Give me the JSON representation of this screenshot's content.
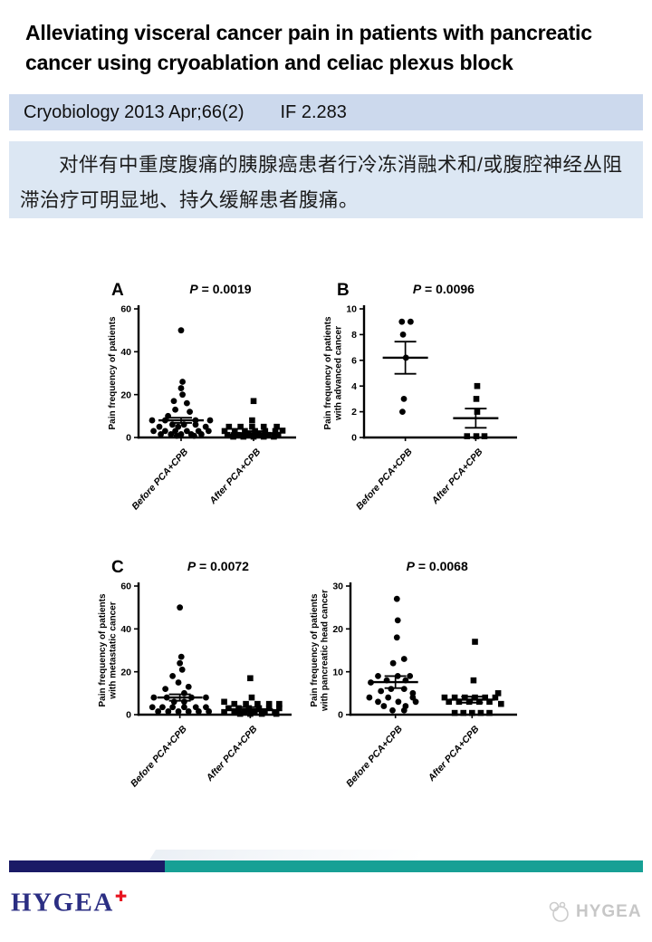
{
  "header": {
    "title": "Alleviating visceral cancer pain in patients with pancreatic cancer using cryoablation and celiac plexus block",
    "journal": "Cryobiology 2013 Apr;66(2)",
    "impact_factor": "IF 2.283"
  },
  "summary_cn": "对伴有中重度腹痛的胰腺癌患者行冷冻消融术和/或腹腔神经丛阻滞治疗可明显地、持久缓解患者腹痛。",
  "footer": {
    "brand": "HYGEA",
    "brand_cross": "✚",
    "watermark_label": "HYGEA"
  },
  "colors": {
    "banner_bg": "#ccd9ed",
    "summary_bg": "#dce7f3",
    "bar_navy": "#1a1a66",
    "bar_teal": "#17a095",
    "brand_navy": "#2b2e83",
    "cross_red": "#e8131f",
    "watermark_gray": "#c7c7c7",
    "plot_ink": "#000000"
  },
  "chart_data": [
    {
      "type": "scatter",
      "panel": "A",
      "p_value": "0.0019",
      "ylabel_lines": [
        "Pain frequency of patients"
      ],
      "ylim": [
        0,
        60
      ],
      "yticks": [
        0,
        20,
        40,
        60
      ],
      "categories": [
        "Before PCA+CPB",
        "After PCA+CPB"
      ],
      "legend": "none",
      "grid": false,
      "series": [
        {
          "name": "Before PCA+CPB",
          "marker": "circle",
          "mean": 8,
          "sem": 1.2,
          "points": [
            [
              0,
              50
            ],
            [
              0.05,
              26
            ],
            [
              0,
              23
            ],
            [
              0.05,
              20
            ],
            [
              -0.25,
              17
            ],
            [
              0.2,
              16
            ],
            [
              -0.2,
              13
            ],
            [
              0.3,
              12
            ],
            [
              -0.45,
              10
            ],
            [
              -1,
              8
            ],
            [
              -0.55,
              8
            ],
            [
              0.5,
              8
            ],
            [
              1,
              8
            ],
            [
              -0.3,
              6
            ],
            [
              0.1,
              6
            ],
            [
              0.5,
              6
            ],
            [
              -0.75,
              5
            ],
            [
              -0.1,
              5
            ],
            [
              0.85,
              5
            ],
            [
              -0.95,
              3
            ],
            [
              -0.55,
              3
            ],
            [
              -0.2,
              3
            ],
            [
              0.2,
              3
            ],
            [
              0.6,
              3
            ],
            [
              0.95,
              3
            ],
            [
              -0.7,
              1.5
            ],
            [
              -0.35,
              1.5
            ],
            [
              0,
              1.5
            ],
            [
              0.35,
              1.5
            ],
            [
              0.7,
              1.5
            ],
            [
              -0.15,
              0.8
            ],
            [
              0.45,
              0.8
            ]
          ]
        },
        {
          "name": "After PCA+CPB",
          "marker": "square",
          "mean": 2,
          "sem": 0.9,
          "points": [
            [
              0,
              17
            ],
            [
              -0.05,
              8
            ],
            [
              -0.85,
              5
            ],
            [
              -0.45,
              5
            ],
            [
              -0.05,
              5
            ],
            [
              0.35,
              5
            ],
            [
              0.8,
              5
            ],
            [
              -1,
              3
            ],
            [
              -0.65,
              3
            ],
            [
              -0.3,
              3
            ],
            [
              0.05,
              3
            ],
            [
              0.4,
              3
            ],
            [
              0.75,
              3
            ],
            [
              1,
              3.2
            ],
            [
              -0.9,
              1.2
            ],
            [
              -0.55,
              1.2
            ],
            [
              -0.2,
              1.2
            ],
            [
              0.15,
              1.2
            ],
            [
              0.5,
              1.2
            ],
            [
              0.85,
              1.2
            ],
            [
              -0.7,
              0.4
            ],
            [
              -0.35,
              0.4
            ],
            [
              0,
              0.4
            ],
            [
              0.35,
              0.4
            ],
            [
              0.7,
              0.4
            ]
          ]
        }
      ]
    },
    {
      "type": "scatter",
      "panel": "B",
      "p_value": "0.0096",
      "ylabel_lines": [
        "Pain frequency of patients",
        "with advanced cancer"
      ],
      "ylim": [
        0,
        10
      ],
      "yticks": [
        0,
        2,
        4,
        6,
        8,
        10
      ],
      "categories": [
        "Before PCA+CPB",
        "After PCA+CPB"
      ],
      "legend": "none",
      "grid": false,
      "series": [
        {
          "name": "Before PCA+CPB",
          "marker": "circle",
          "mean": 6.2,
          "sem": 1.25,
          "points": [
            [
              -0.12,
              9
            ],
            [
              0.18,
              9
            ],
            [
              -0.08,
              8
            ],
            [
              0.02,
              6.2
            ],
            [
              -0.05,
              3
            ],
            [
              -0.1,
              2
            ]
          ]
        },
        {
          "name": "After PCA+CPB",
          "marker": "square",
          "mean": 1.5,
          "sem": 0.75,
          "points": [
            [
              0.05,
              4
            ],
            [
              0.02,
              3
            ],
            [
              0.05,
              2
            ],
            [
              -0.3,
              0.1
            ],
            [
              0.02,
              0.1
            ],
            [
              0.3,
              0.1
            ]
          ]
        }
      ]
    },
    {
      "type": "scatter",
      "panel": "C",
      "p_value": "0.0072",
      "ylabel_lines": [
        "Pain frequency of patients",
        "with metastatic cancer"
      ],
      "ylim": [
        0,
        60
      ],
      "yticks": [
        0,
        20,
        40,
        60
      ],
      "categories": [
        "Before PCA+CPB",
        "After PCA+CPB"
      ],
      "legend": "none",
      "grid": false,
      "series": [
        {
          "name": "Before PCA+CPB",
          "marker": "circle",
          "mean": 8,
          "sem": 1.5,
          "points": [
            [
              0,
              50
            ],
            [
              0.05,
              27
            ],
            [
              0,
              24
            ],
            [
              0.08,
              21
            ],
            [
              -0.25,
              18
            ],
            [
              -0.05,
              15
            ],
            [
              0.3,
              13
            ],
            [
              -0.5,
              12
            ],
            [
              0.15,
              10
            ],
            [
              -0.9,
              8
            ],
            [
              -0.45,
              8
            ],
            [
              0.4,
              8
            ],
            [
              0.9,
              8
            ],
            [
              -0.2,
              6
            ],
            [
              0.15,
              6
            ],
            [
              -0.95,
              3.5
            ],
            [
              -0.6,
              3.5
            ],
            [
              -0.25,
              3.5
            ],
            [
              0.15,
              3.5
            ],
            [
              0.55,
              3.5
            ],
            [
              0.9,
              3.5
            ],
            [
              -0.75,
              1.5
            ],
            [
              -0.4,
              1.5
            ],
            [
              -0.05,
              1.5
            ],
            [
              0.3,
              1.5
            ],
            [
              0.65,
              1.5
            ],
            [
              1,
              1.5
            ]
          ]
        },
        {
          "name": "After PCA+CPB",
          "marker": "square",
          "mean": 2.5,
          "sem": 1,
          "points": [
            [
              0,
              17
            ],
            [
              0.05,
              8
            ],
            [
              -0.9,
              6
            ],
            [
              -0.55,
              5
            ],
            [
              -0.15,
              5
            ],
            [
              0.25,
              5
            ],
            [
              0.65,
              5
            ],
            [
              1,
              5
            ],
            [
              -0.75,
              3
            ],
            [
              -0.4,
              3
            ],
            [
              -0.05,
              3
            ],
            [
              0.3,
              3
            ],
            [
              0.65,
              3
            ],
            [
              1,
              3
            ],
            [
              -0.9,
              1.2
            ],
            [
              -0.55,
              1.2
            ],
            [
              -0.2,
              1.2
            ],
            [
              0.15,
              1.2
            ],
            [
              0.5,
              1.2
            ],
            [
              0.85,
              1.2
            ],
            [
              -0.35,
              0.4
            ],
            [
              0,
              0.4
            ],
            [
              0.4,
              0.4
            ],
            [
              0.9,
              0.4
            ]
          ]
        }
      ]
    },
    {
      "type": "scatter",
      "panel": "",
      "p_value": "0.0068",
      "ylabel_lines": [
        "Pain frequency of patients",
        "with pancreatic head cancer"
      ],
      "ylim": [
        0,
        30
      ],
      "yticks": [
        0,
        10,
        20,
        30
      ],
      "categories": [
        "Before PCA+CPB",
        "After PCA+CPB"
      ],
      "legend": "none",
      "grid": false,
      "series": [
        {
          "name": "Before PCA+CPB",
          "marker": "circle",
          "mean": 7.6,
          "sem": 1.4,
          "points": [
            [
              0.05,
              27
            ],
            [
              0.08,
              22
            ],
            [
              0.05,
              18
            ],
            [
              0.3,
              13
            ],
            [
              -0.08,
              12
            ],
            [
              -0.6,
              9
            ],
            [
              0.08,
              9
            ],
            [
              0.5,
              9
            ],
            [
              -0.3,
              8
            ],
            [
              0.35,
              8
            ],
            [
              -0.85,
              7.5
            ],
            [
              -0.15,
              6
            ],
            [
              0.3,
              6
            ],
            [
              -0.5,
              5.5
            ],
            [
              0.6,
              5
            ],
            [
              -0.9,
              4
            ],
            [
              -0.25,
              4
            ],
            [
              0.6,
              4
            ],
            [
              -0.6,
              3
            ],
            [
              0.1,
              3
            ],
            [
              0.7,
              3
            ],
            [
              -0.4,
              2
            ],
            [
              0.35,
              2
            ],
            [
              -0.1,
              1
            ],
            [
              0.3,
              1
            ]
          ]
        },
        {
          "name": "After PCA+CPB",
          "marker": "square",
          "mean": 3.5,
          "sem": 0.7,
          "points": [
            [
              0.1,
              17
            ],
            [
              0.05,
              8
            ],
            [
              0.9,
              5
            ],
            [
              -0.95,
              4
            ],
            [
              -0.6,
              4
            ],
            [
              -0.25,
              4
            ],
            [
              0.1,
              4
            ],
            [
              0.45,
              4
            ],
            [
              0.8,
              4
            ],
            [
              -0.8,
              3
            ],
            [
              -0.45,
              3
            ],
            [
              -0.1,
              3
            ],
            [
              0.25,
              3
            ],
            [
              0.6,
              3
            ],
            [
              1,
              2.5
            ],
            [
              -0.6,
              0.4
            ],
            [
              -0.3,
              0.4
            ],
            [
              0,
              0.4
            ],
            [
              0.3,
              0.4
            ],
            [
              0.6,
              0.4
            ]
          ]
        }
      ]
    }
  ]
}
